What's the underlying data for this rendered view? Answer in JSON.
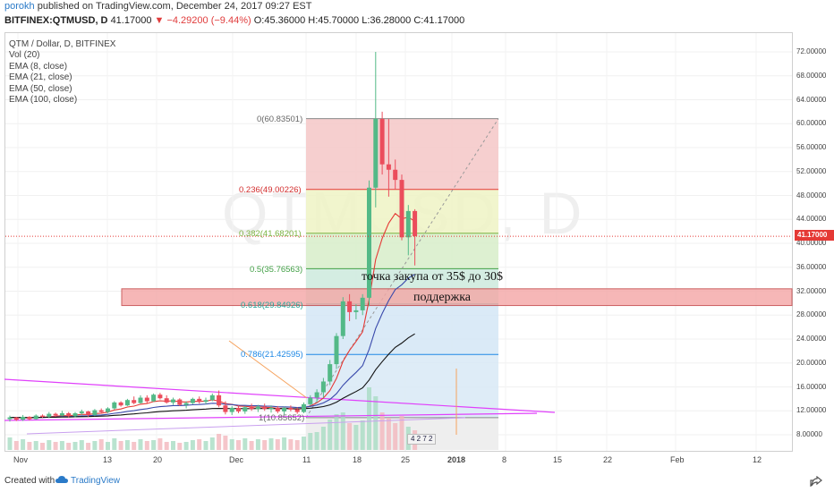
{
  "header": {
    "author": "porokh",
    "published_text": "published on TradingView.com, December 24, 2017 09:27 EST",
    "symbol": "BITFINEX:QTMUSD, D",
    "last": "41.17000",
    "change": "▼ −4.29200 (−9.44%)",
    "ohlc": "O:45.36000 H:45.70000 L:36.28000 C:41.17000"
  },
  "legend": {
    "title": "QTM / Dollar, D, BITFINEX",
    "items": [
      "Vol (20)",
      "EMA (8, close)",
      "EMA (21, close)",
      "EMA (50, close)",
      "EMA (100, close)"
    ]
  },
  "watermark": "QTMUSD, D",
  "last_price_label": "41.17000",
  "annotations": {
    "buy_zone": "точка закупа от 35$ до 30$",
    "support": "поддержка"
  },
  "footer": {
    "created_with": "Created with",
    "brand": "TradingView"
  },
  "badge": "4 2 7 2",
  "colors": {
    "up": "#53b987",
    "down": "#eb4d5c",
    "ema8": "#e53935",
    "ema21": "#3949ab",
    "ema50": "#111111",
    "trendline": "#e040fb",
    "support_zone": "#f4a6a6",
    "last_price": "#e53935"
  },
  "chart_data": {
    "type": "candlestick",
    "title": "BITFINEX:QTMUSD, D",
    "y_axis": {
      "ticks": [
        "72.00000",
        "68.00000",
        "64.00000",
        "60.00000",
        "56.00000",
        "52.00000",
        "48.00000",
        "44.00000",
        "40.00000",
        "36.00000",
        "32.00000",
        "28.00000",
        "24.00000",
        "20.00000",
        "16.00000",
        "12.00000",
        "8.00000"
      ],
      "range": [
        5.6,
        76.8
      ]
    },
    "x_axis": {
      "ticks": [
        "Nov",
        "13",
        "20",
        "Dec",
        "11",
        "18",
        "25",
        "2018",
        "8",
        "15",
        "22",
        "Feb",
        "12"
      ]
    },
    "candles": [
      {
        "o": 10.6,
        "h": 11.2,
        "l": 10.2,
        "c": 10.9
      },
      {
        "o": 10.9,
        "h": 11.0,
        "l": 10.3,
        "c": 10.5
      },
      {
        "o": 10.5,
        "h": 11.3,
        "l": 10.3,
        "c": 11.0
      },
      {
        "o": 11.0,
        "h": 11.1,
        "l": 10.4,
        "c": 10.6
      },
      {
        "o": 10.6,
        "h": 11.4,
        "l": 10.5,
        "c": 11.2
      },
      {
        "o": 11.2,
        "h": 11.4,
        "l": 10.8,
        "c": 11.0
      },
      {
        "o": 11.0,
        "h": 11.8,
        "l": 10.8,
        "c": 11.5
      },
      {
        "o": 11.5,
        "h": 11.7,
        "l": 11.0,
        "c": 11.2
      },
      {
        "o": 11.2,
        "h": 12.0,
        "l": 11.1,
        "c": 11.6
      },
      {
        "o": 11.6,
        "h": 11.8,
        "l": 10.9,
        "c": 11.1
      },
      {
        "o": 11.1,
        "h": 11.8,
        "l": 10.9,
        "c": 11.6
      },
      {
        "o": 11.6,
        "h": 12.2,
        "l": 11.3,
        "c": 11.9
      },
      {
        "o": 11.9,
        "h": 12.0,
        "l": 11.0,
        "c": 11.3
      },
      {
        "o": 11.3,
        "h": 12.3,
        "l": 11.1,
        "c": 12.1
      },
      {
        "o": 12.1,
        "h": 12.4,
        "l": 11.6,
        "c": 11.8
      },
      {
        "o": 11.8,
        "h": 12.6,
        "l": 11.6,
        "c": 12.4
      },
      {
        "o": 12.4,
        "h": 13.6,
        "l": 12.2,
        "c": 13.4
      },
      {
        "o": 13.4,
        "h": 13.6,
        "l": 12.7,
        "c": 12.9
      },
      {
        "o": 12.9,
        "h": 14.0,
        "l": 12.8,
        "c": 13.8
      },
      {
        "o": 13.8,
        "h": 14.4,
        "l": 13.1,
        "c": 13.3
      },
      {
        "o": 13.3,
        "h": 14.6,
        "l": 13.2,
        "c": 14.2
      },
      {
        "o": 14.2,
        "h": 14.6,
        "l": 13.3,
        "c": 13.6
      },
      {
        "o": 13.6,
        "h": 14.9,
        "l": 13.5,
        "c": 14.7
      },
      {
        "o": 14.7,
        "h": 15.0,
        "l": 13.9,
        "c": 14.1
      },
      {
        "o": 14.1,
        "h": 14.6,
        "l": 13.2,
        "c": 13.4
      },
      {
        "o": 13.4,
        "h": 14.2,
        "l": 13.0,
        "c": 13.9
      },
      {
        "o": 13.9,
        "h": 14.1,
        "l": 12.8,
        "c": 13.0
      },
      {
        "o": 13.0,
        "h": 13.6,
        "l": 12.4,
        "c": 13.3
      },
      {
        "o": 13.3,
        "h": 14.2,
        "l": 13.1,
        "c": 14.0
      },
      {
        "o": 14.0,
        "h": 14.4,
        "l": 13.2,
        "c": 13.5
      },
      {
        "o": 13.5,
        "h": 14.2,
        "l": 13.1,
        "c": 13.8
      },
      {
        "o": 13.8,
        "h": 14.9,
        "l": 13.6,
        "c": 14.6
      },
      {
        "o": 14.6,
        "h": 15.4,
        "l": 12.6,
        "c": 12.9
      },
      {
        "o": 12.9,
        "h": 13.6,
        "l": 11.4,
        "c": 11.8
      },
      {
        "o": 11.8,
        "h": 12.8,
        "l": 11.3,
        "c": 12.5
      },
      {
        "o": 12.5,
        "h": 12.9,
        "l": 11.6,
        "c": 11.9
      },
      {
        "o": 11.9,
        "h": 12.8,
        "l": 11.5,
        "c": 12.6
      },
      {
        "o": 12.6,
        "h": 13.2,
        "l": 12.0,
        "c": 12.3
      },
      {
        "o": 12.3,
        "h": 13.0,
        "l": 11.8,
        "c": 12.7
      },
      {
        "o": 12.7,
        "h": 13.2,
        "l": 12.0,
        "c": 12.3
      },
      {
        "o": 12.3,
        "h": 12.9,
        "l": 11.7,
        "c": 12.5
      },
      {
        "o": 12.5,
        "h": 12.8,
        "l": 11.6,
        "c": 11.9
      },
      {
        "o": 11.9,
        "h": 12.7,
        "l": 11.4,
        "c": 12.5
      },
      {
        "o": 12.5,
        "h": 12.9,
        "l": 11.9,
        "c": 12.2
      },
      {
        "o": 12.2,
        "h": 12.6,
        "l": 11.5,
        "c": 11.8
      },
      {
        "o": 11.8,
        "h": 13.4,
        "l": 11.6,
        "c": 13.1
      },
      {
        "o": 13.1,
        "h": 14.6,
        "l": 12.9,
        "c": 14.2
      },
      {
        "o": 14.2,
        "h": 15.6,
        "l": 13.4,
        "c": 15.1
      },
      {
        "o": 15.1,
        "h": 17.5,
        "l": 14.2,
        "c": 16.9
      },
      {
        "o": 16.9,
        "h": 20.5,
        "l": 16.3,
        "c": 19.8
      },
      {
        "o": 19.8,
        "h": 25.0,
        "l": 19.0,
        "c": 24.5
      },
      {
        "o": 24.5,
        "h": 31.0,
        "l": 24.0,
        "c": 30.3
      },
      {
        "o": 30.3,
        "h": 31.5,
        "l": 27.0,
        "c": 28.5
      },
      {
        "o": 28.5,
        "h": 29.8,
        "l": 27.3,
        "c": 28.8
      },
      {
        "o": 28.8,
        "h": 31.5,
        "l": 28.0,
        "c": 30.9
      },
      {
        "o": 30.9,
        "h": 50.5,
        "l": 29.5,
        "c": 49.3
      },
      {
        "o": 49.3,
        "h": 72.0,
        "l": 46.0,
        "c": 60.8
      },
      {
        "o": 60.8,
        "h": 62.0,
        "l": 51.5,
        "c": 53.2
      },
      {
        "o": 53.2,
        "h": 60.8,
        "l": 47.8,
        "c": 52.3
      },
      {
        "o": 52.3,
        "h": 54.0,
        "l": 49.0,
        "c": 50.6
      },
      {
        "o": 50.6,
        "h": 51.5,
        "l": 40.5,
        "c": 41.0
      },
      {
        "o": 41.0,
        "h": 46.4,
        "l": 38.0,
        "c": 45.4
      },
      {
        "o": 45.4,
        "h": 45.7,
        "l": 36.3,
        "c": 41.2
      }
    ],
    "volume_bars_visible": true,
    "ema_lines": [
      "EMA 8",
      "EMA 21",
      "EMA 50",
      "EMA 100"
    ],
    "fibonacci": [
      {
        "label": "0(60.83501)",
        "value": 60.835,
        "color": "#888888"
      },
      {
        "label": "0.236(49.00226)",
        "value": 49.002,
        "color": "#e53935"
      },
      {
        "label": "0.382(41.68201)",
        "value": 41.682,
        "color": "#7cb342"
      },
      {
        "label": "0.5(35.76563)",
        "value": 35.766,
        "color": "#43a047"
      },
      {
        "label": "0.618(29.84926)",
        "value": 29.849,
        "color": "#26a69a"
      },
      {
        "label": "0.786(21.42595)",
        "value": 21.426,
        "color": "#1e88e5"
      },
      {
        "label": "1(10.85652)",
        "value": 10.857,
        "color": "#888888"
      }
    ],
    "support_zone": [
      29.6,
      32.4
    ],
    "last_price": 41.17
  }
}
